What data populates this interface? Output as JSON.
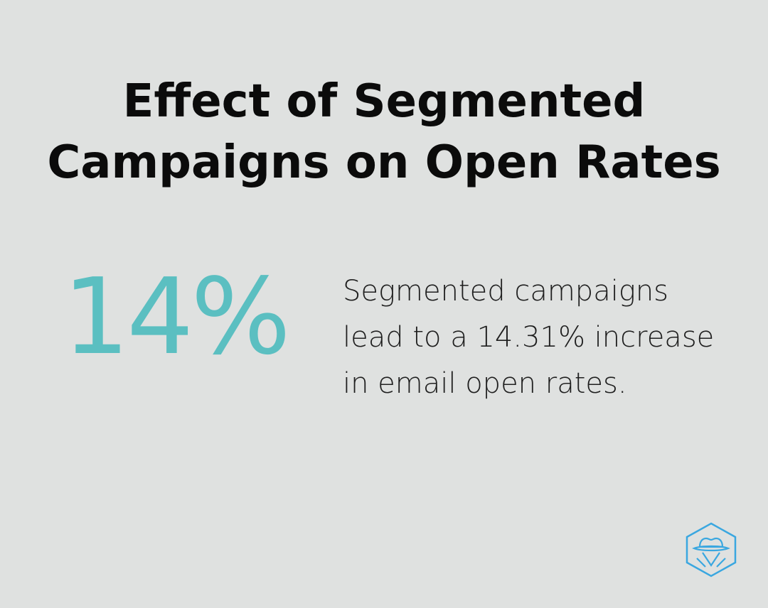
{
  "title": {
    "line1": "Effect of Segmented",
    "line2": "Campaigns on Open Rates"
  },
  "stat": {
    "value": "14%"
  },
  "description": "Segmented campaigns lead to a 14.31% increase in email open rates.",
  "colors": {
    "background": "#dfe1e0",
    "accent": "#5bbfc1",
    "logo": "#3aa7e0",
    "text": "#0b0b0b"
  },
  "logo": {
    "icon": "spy-hat-hexagon-icon"
  }
}
